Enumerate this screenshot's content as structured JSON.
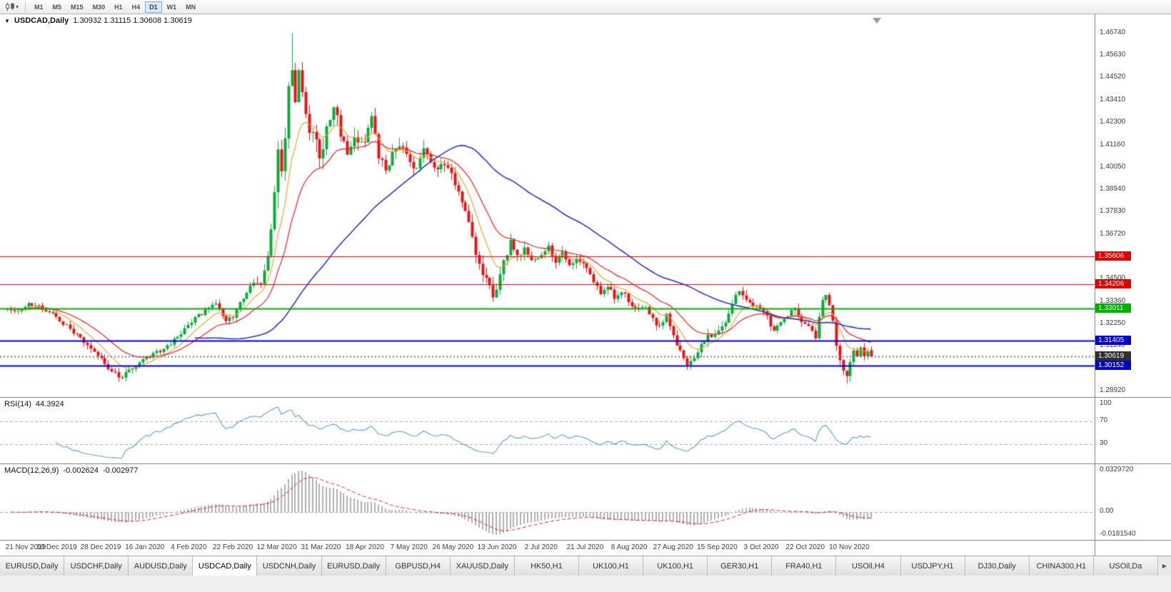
{
  "toolbar": {
    "timeframes": [
      "M1",
      "M5",
      "M15",
      "M30",
      "H1",
      "H4",
      "D1",
      "W1",
      "MN"
    ],
    "active_timeframe": "D1"
  },
  "icons": {
    "chart_type_caret": "▾",
    "symbol_menu": "▼",
    "tabs_scroll_right": "▶"
  },
  "chart_header": {
    "title": "USDCAD,Daily",
    "ohlc_text": "1.30932 1.31115 1.30608 1.30619"
  },
  "rsi_panel": {
    "label": "RSI(14)",
    "value": "44.3924",
    "scale_labels": [
      "100",
      "70",
      "30"
    ]
  },
  "macd_panel": {
    "label": "MACD(12,26,9)",
    "value_macd": "-0.002624",
    "value_signal": "-0.002977",
    "scale_labels": [
      "0.0329720",
      "0.00",
      "-0.0181540"
    ]
  },
  "tabs": {
    "items": [
      "EURUSD,Daily",
      "USDCHF,Daily",
      "AUDUSD,Daily",
      "USDCAD,Daily",
      "USDCNH,Daily",
      "EURUSD,Daily",
      "GBPUSD,H4",
      "XAUUSD,Daily",
      "HK50,H1",
      "UK100,H1",
      "UK100,H1",
      "GER30,H1",
      "FRA40,H1",
      "USOil,H4",
      "USDJPY,H1",
      "DJ30,Daily",
      "CHINA300,H1",
      "USOil,Da"
    ],
    "active_index": 3
  },
  "chart_data": {
    "type": "candlestick",
    "symbol": "USDCAD",
    "timeframe": "Daily",
    "n_candles": 250,
    "seed": 20201119,
    "candle_colors": {
      "up": "#0caa3c",
      "down": "#e81414"
    },
    "last_candle": {
      "open": 1.30932,
      "high": 1.31115,
      "low": 1.30608,
      "close": 1.30619
    },
    "extremes": {
      "high_index": 82,
      "high": 1.4674,
      "low_index": 242,
      "low": 1.2928
    },
    "close_anchors": [
      [
        0,
        1.3305
      ],
      [
        3,
        1.3285
      ],
      [
        6,
        1.3332
      ],
      [
        10,
        1.33
      ],
      [
        14,
        1.3258
      ],
      [
        18,
        1.3195
      ],
      [
        22,
        1.314
      ],
      [
        26,
        1.3075
      ],
      [
        30,
        1.2985
      ],
      [
        33,
        1.2958
      ],
      [
        36,
        1.3005
      ],
      [
        39,
        1.3045
      ],
      [
        43,
        1.308
      ],
      [
        46,
        1.311
      ],
      [
        49,
        1.316
      ],
      [
        52,
        1.3225
      ],
      [
        55,
        1.3265
      ],
      [
        58,
        1.33
      ],
      [
        60,
        1.332
      ],
      [
        63,
        1.3248
      ],
      [
        65,
        1.3262
      ],
      [
        68,
        1.335
      ],
      [
        71,
        1.344
      ],
      [
        73,
        1.3405
      ],
      [
        75,
        1.356
      ],
      [
        76,
        1.372
      ],
      [
        77,
        1.389
      ],
      [
        78,
        1.406
      ],
      [
        79,
        1.396
      ],
      [
        80,
        1.419
      ],
      [
        81,
        1.436
      ],
      [
        82,
        1.452
      ],
      [
        83,
        1.43
      ],
      [
        84,
        1.445
      ],
      [
        85,
        1.439
      ],
      [
        86,
        1.427
      ],
      [
        88,
        1.415
      ],
      [
        90,
        1.407
      ],
      [
        92,
        1.418
      ],
      [
        94,
        1.433
      ],
      [
        96,
        1.416
      ],
      [
        98,
        1.406
      ],
      [
        100,
        1.413
      ],
      [
        103,
        1.4125
      ],
      [
        105,
        1.4255
      ],
      [
        107,
        1.407
      ],
      [
        109,
        1.399
      ],
      [
        111,
        1.408
      ],
      [
        113,
        1.411
      ],
      [
        116,
        1.405
      ],
      [
        118,
        1.3985
      ],
      [
        120,
        1.4085
      ],
      [
        123,
        1.4005
      ],
      [
        126,
        1.4035
      ],
      [
        128,
        1.397
      ],
      [
        130,
        1.389
      ],
      [
        132,
        1.378
      ],
      [
        134,
        1.3645
      ],
      [
        136,
        1.353
      ],
      [
        138,
        1.3435
      ],
      [
        140,
        1.336
      ],
      [
        141,
        1.341
      ],
      [
        143,
        1.353
      ],
      [
        145,
        1.3625
      ],
      [
        147,
        1.356
      ],
      [
        149,
        1.361
      ],
      [
        151,
        1.355
      ],
      [
        154,
        1.3565
      ],
      [
        156,
        1.36
      ],
      [
        158,
        1.354
      ],
      [
        160,
        1.358
      ],
      [
        162,
        1.352
      ],
      [
        164,
        1.356
      ],
      [
        167,
        1.349
      ],
      [
        169,
        1.3435
      ],
      [
        171,
        1.338
      ],
      [
        173,
        1.3415
      ],
      [
        175,
        1.335
      ],
      [
        177,
        1.339
      ],
      [
        180,
        1.3305
      ],
      [
        182,
        1.329
      ],
      [
        184,
        1.332
      ],
      [
        186,
        1.325
      ],
      [
        188,
        1.321
      ],
      [
        190,
        1.326
      ],
      [
        192,
        1.3165
      ],
      [
        194,
        1.309
      ],
      [
        196,
        1.3005
      ],
      [
        198,
        1.306
      ],
      [
        200,
        1.312
      ],
      [
        202,
        1.316
      ],
      [
        205,
        1.3185
      ],
      [
        207,
        1.324
      ],
      [
        209,
        1.333
      ],
      [
        211,
        1.339
      ],
      [
        213,
        1.333
      ],
      [
        215,
        1.332
      ],
      [
        218,
        1.329
      ],
      [
        221,
        1.3185
      ],
      [
        224,
        1.3255
      ],
      [
        227,
        1.3305
      ],
      [
        229,
        1.3235
      ],
      [
        231,
        1.321
      ],
      [
        233,
        1.3155
      ],
      [
        235,
        1.334
      ],
      [
        236,
        1.337
      ],
      [
        237,
        1.332
      ],
      [
        238,
        1.3225
      ],
      [
        239,
        1.3125
      ],
      [
        240,
        1.306
      ],
      [
        241,
        1.2985
      ],
      [
        242,
        1.295
      ],
      [
        243,
        1.3025
      ],
      [
        244,
        1.309
      ],
      [
        245,
        1.3055
      ],
      [
        246,
        1.3105
      ],
      [
        247,
        1.3065
      ],
      [
        248,
        1.3098
      ],
      [
        249,
        1.30619
      ]
    ],
    "volatility_anchors": [
      [
        0,
        0.0036
      ],
      [
        20,
        0.0042
      ],
      [
        30,
        0.0048
      ],
      [
        45,
        0.0038
      ],
      [
        60,
        0.004
      ],
      [
        70,
        0.006
      ],
      [
        74,
        0.009
      ],
      [
        76,
        0.015
      ],
      [
        80,
        0.02
      ],
      [
        84,
        0.019
      ],
      [
        88,
        0.015
      ],
      [
        92,
        0.012
      ],
      [
        100,
        0.01
      ],
      [
        110,
        0.009
      ],
      [
        120,
        0.0085
      ],
      [
        130,
        0.0085
      ],
      [
        138,
        0.009
      ],
      [
        145,
        0.0075
      ],
      [
        155,
        0.0062
      ],
      [
        170,
        0.0055
      ],
      [
        185,
        0.0058
      ],
      [
        196,
        0.0062
      ],
      [
        210,
        0.0058
      ],
      [
        225,
        0.005
      ],
      [
        236,
        0.0055
      ],
      [
        241,
        0.0075
      ],
      [
        245,
        0.005
      ],
      [
        249,
        0.0045
      ]
    ],
    "x_labels": [
      "21 Nov 2019",
      "10 Dec 2019",
      "28 Dec 2019",
      "16 Jan 2020",
      "4 Feb 2020",
      "22 Feb 2020",
      "12 Mar 2020",
      "31 Mar 2020",
      "18 Apr 2020",
      "7 May 2020",
      "26 May 2020",
      "13 Jun 2020",
      "2 Jul 2020",
      "21 Jul 2020",
      "8 Aug 2020",
      "27 Aug 2020",
      "15 Sep 2020",
      "3 Oct 2020",
      "22 Oct 2020",
      "10 Nov 2020"
    ],
    "y_axis": {
      "view_max": 1.4752,
      "view_min": 1.2881,
      "ticks": [
        "1.46740",
        "1.45630",
        "1.44520",
        "1.43410",
        "1.42300",
        "1.41160",
        "1.40050",
        "1.38940",
        "1.37830",
        "1.36720",
        "1.34500",
        "1.33360",
        "1.32250",
        "1.31140",
        "1.28920"
      ]
    },
    "levels": [
      {
        "price": 1.35606,
        "label": "1.35606",
        "color": "#e00000",
        "width": 1
      },
      {
        "price": 1.34206,
        "label": "1.34206",
        "color": "#e00000",
        "width": 1
      },
      {
        "price": 1.33011,
        "label": "1.33011",
        "color": "#00b000",
        "width": 2
      },
      {
        "price": 1.31405,
        "label": "1.31405",
        "color": "#0000cc",
        "width": 2
      },
      {
        "price": 1.30152,
        "label": "1.30152",
        "color": "#0000cc",
        "width": 2
      }
    ],
    "current_price": {
      "value": 1.30619,
      "label": "1.30619",
      "badge_color": "#2f2f2f"
    },
    "moving_averages": [
      {
        "name": "fast",
        "type": "ema",
        "period": 9,
        "color": "#efa335"
      },
      {
        "name": "mid",
        "type": "ema",
        "period": 21,
        "color": "#ec1c24"
      },
      {
        "name": "slow",
        "type": "sma",
        "period": 55,
        "color": "#2a35c0"
      }
    ],
    "rsi": {
      "period": 14,
      "color": "#5b9bd5",
      "levels": [
        70,
        30
      ],
      "current": 44.3924
    },
    "macd": {
      "fast": 12,
      "slow": 26,
      "signal": 9,
      "hist_color": "#b0b0b0",
      "signal_color": "#e02020",
      "scale_max": 0.032972,
      "scale_min": -0.018154,
      "current_macd": -0.002624,
      "current_signal": -0.002977
    }
  }
}
